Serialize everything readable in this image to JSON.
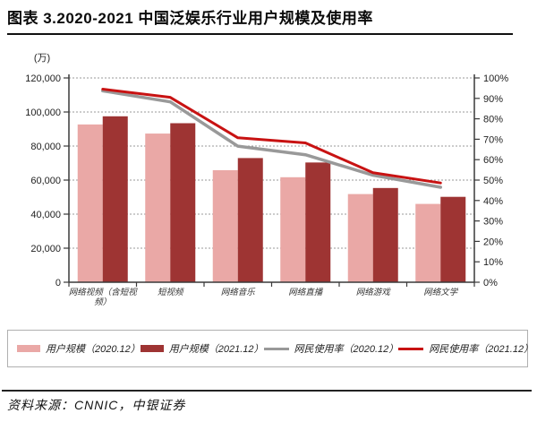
{
  "header": {
    "title": "图表 3.2020-2021 中国泛娱乐行业用户规模及使用率"
  },
  "chart_data": {
    "type": "bar+line combo",
    "title": "图表 3.2020-2021 中国泛娱乐行业用户规模及使用率",
    "categories": [
      "网络视频（含短视频）",
      "短视频",
      "网络音乐",
      "网络直播",
      "网络游戏",
      "网络文学"
    ],
    "bar_series": [
      {
        "name": "用户规模（2020.12）",
        "color": "#eaa8a6",
        "axis": "left",
        "values": [
          92677,
          87335,
          65825,
          61685,
          51793,
          46013
        ]
      },
      {
        "name": "用户规模（2021.12）",
        "color": "#9e3433",
        "axis": "left",
        "values": [
          97471,
          93415,
          72946,
          70337,
          55354,
          50159
        ]
      }
    ],
    "line_series": [
      {
        "name": "网民使用率（2020.12）",
        "color": "#999999",
        "axis": "right",
        "values": [
          93.7,
          88.3,
          66.6,
          62.4,
          52.4,
          46.5
        ]
      },
      {
        "name": "网民使用率（2021.12）",
        "color": "#c81212",
        "axis": "right",
        "values": [
          94.5,
          90.5,
          70.7,
          68.2,
          53.6,
          48.6
        ]
      }
    ],
    "y_left": {
      "unit": "(万)",
      "min": 0,
      "max": 120000,
      "step": 20000
    },
    "y_right": {
      "min": 0,
      "max": 100,
      "step": 10,
      "suffix": "%"
    },
    "grid": "dotted horizontal every 20000 (left) / 20% (right)",
    "grid_color": "#9a9a9a",
    "axis_color": "#3a3a3a",
    "legend_position": "bottom boxed"
  },
  "legend": {
    "items": [
      {
        "label": "用户规模（2020.12）",
        "swatch": "bar"
      },
      {
        "label": "用户规模（2021.12）",
        "swatch": "bar"
      },
      {
        "label": "网民使用率（2020.12）",
        "swatch": "line"
      },
      {
        "label": "网民使用率（2021.12）",
        "swatch": "line"
      }
    ]
  },
  "footer": {
    "source": "资料来源：CNNIC，中银证券"
  }
}
